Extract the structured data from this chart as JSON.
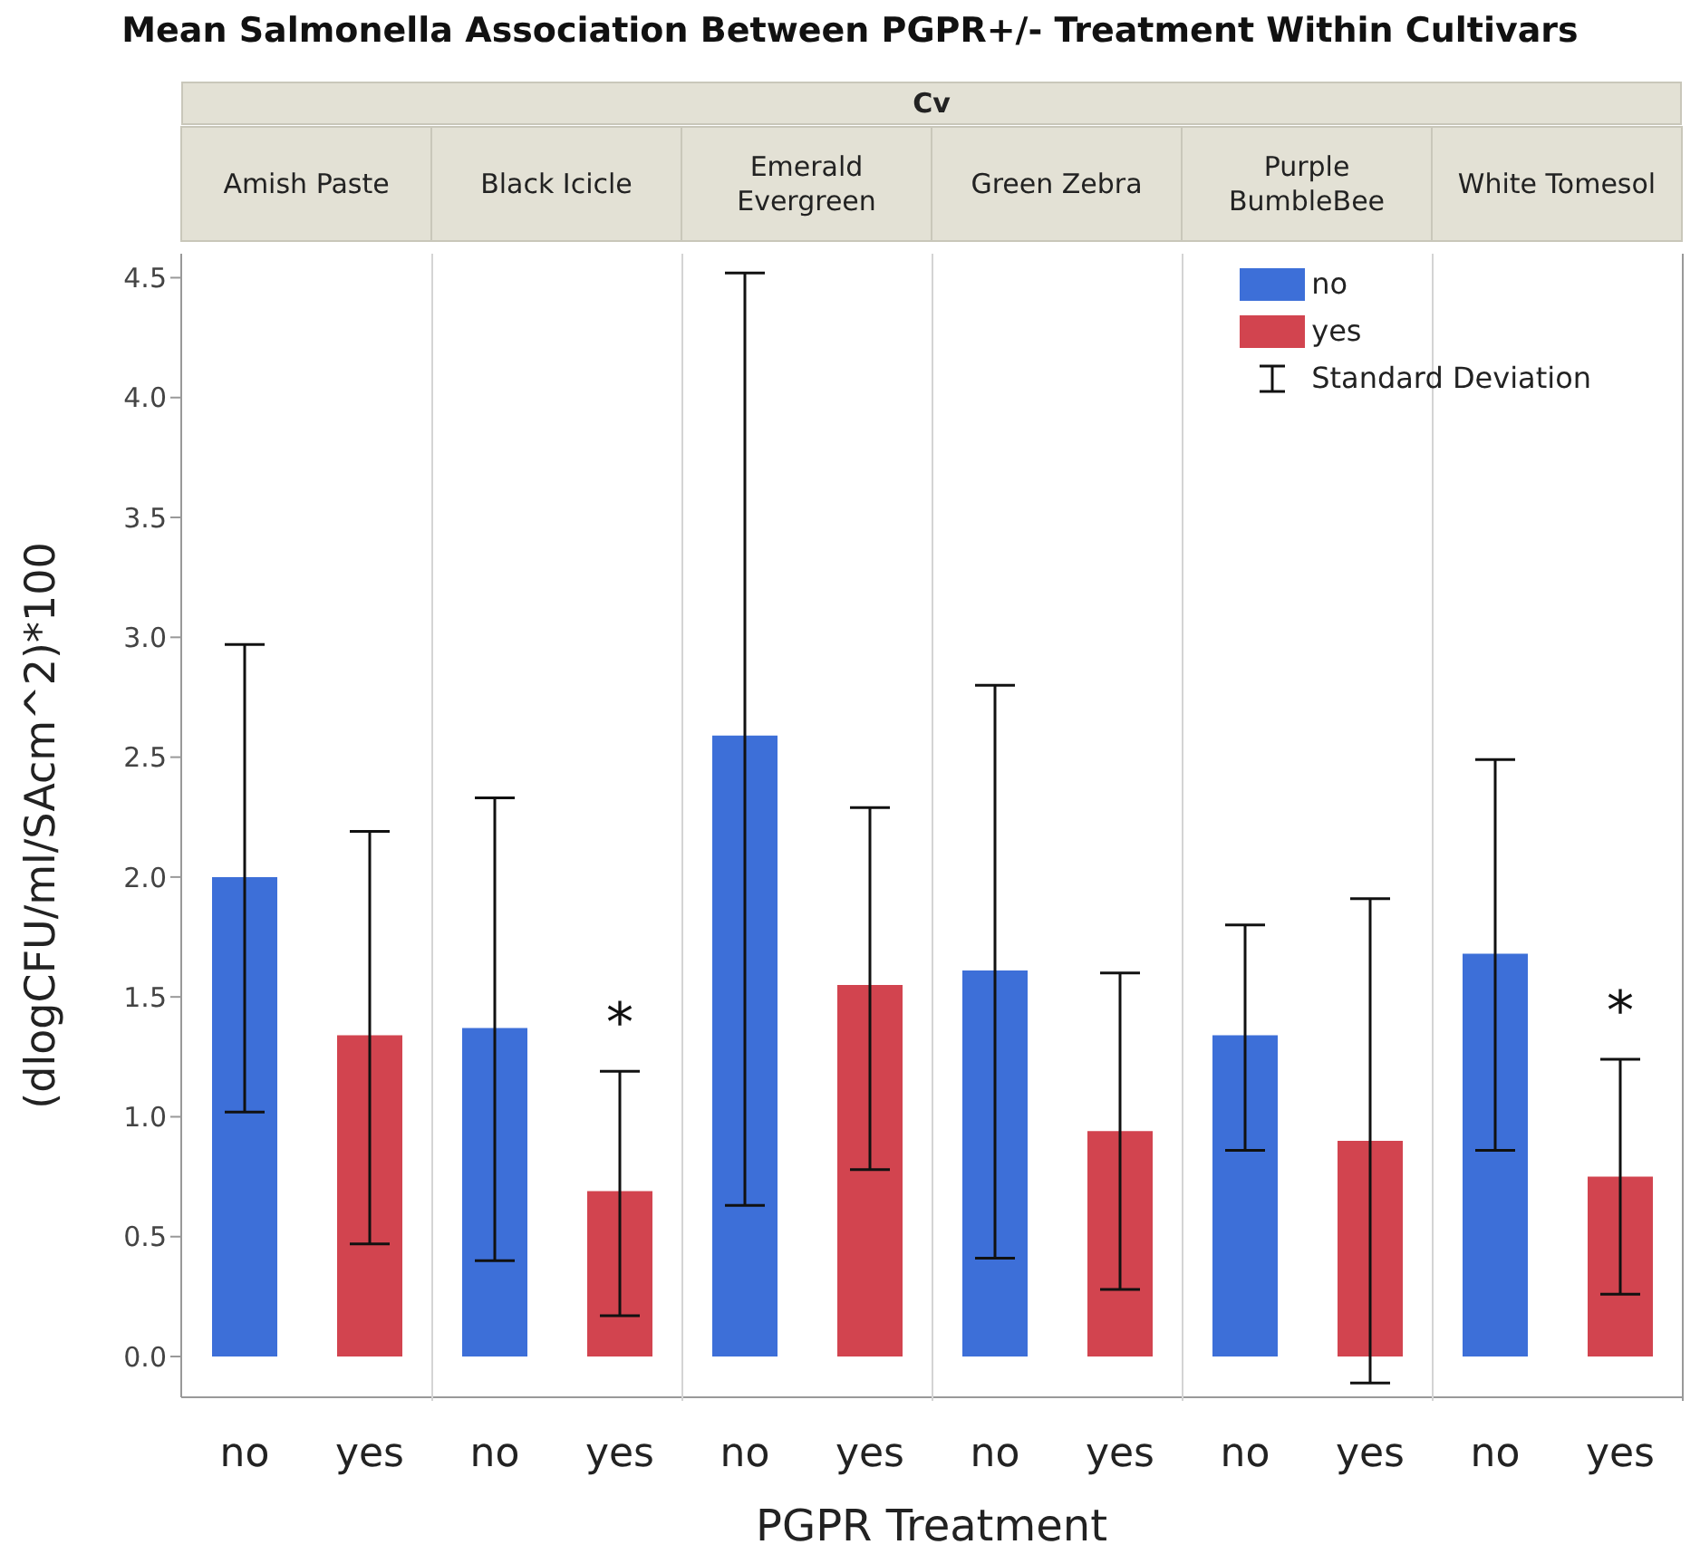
{
  "chart_data": {
    "type": "bar",
    "title": "Mean Salmonella Association Between PGPR+/- Treatment Within Cultivars",
    "xlabel": "PGPR Treatment",
    "ylabel": "(dlogCFU/ml/SAcm^2)*100",
    "categories": [
      "Amish Paste",
      "Black Icicle",
      "Emerald Evergreen",
      "Green Zebra",
      "Purple BumbleBee",
      "White Tomesol"
    ],
    "series": [
      {
        "name": "no",
        "color": "#3d6fd8",
        "values": [
          2.0,
          1.37,
          2.59,
          1.61,
          1.34,
          1.68
        ],
        "errors": [
          [
            1.02,
            2.97
          ],
          [
            0.4,
            2.33
          ],
          [
            0.63,
            4.52
          ],
          [
            0.41,
            2.8
          ],
          [
            0.86,
            1.8
          ],
          [
            0.86,
            2.49
          ]
        ]
      },
      {
        "name": "yes",
        "color": "#d2444f",
        "values": [
          1.34,
          0.69,
          1.55,
          0.94,
          0.9,
          0.75
        ],
        "value_labels": [
          null,
          "*",
          null,
          null,
          null,
          "*"
        ],
        "errors": [
          [
            0.47,
            2.19
          ],
          [
            0.17,
            1.19
          ],
          [
            0.78,
            2.29
          ],
          [
            0.28,
            1.6
          ],
          [
            -0.11,
            1.91
          ],
          [
            0.26,
            1.24
          ]
        ]
      }
    ],
    "annotations": [
      "Cv",
      "Standard Deviation"
    ],
    "legend": "top right",
    "ylim": [
      -0.17,
      4.6
    ],
    "yticks": [
      {
        "value": 0,
        "label": "0.0"
      },
      {
        "value": 0.5,
        "label": "0.5"
      },
      {
        "value": 1,
        "label": "1.0"
      },
      {
        "value": 1.5,
        "label": "1.5"
      },
      {
        "value": 2,
        "label": "2.0"
      },
      {
        "value": 2.5,
        "label": "2.5"
      },
      {
        "value": 3,
        "label": "3.0"
      },
      {
        "value": 3.5,
        "label": "3.5"
      },
      {
        "value": 4,
        "label": "4.0"
      },
      {
        "value": 4.5,
        "label": "4.5"
      }
    ]
  }
}
